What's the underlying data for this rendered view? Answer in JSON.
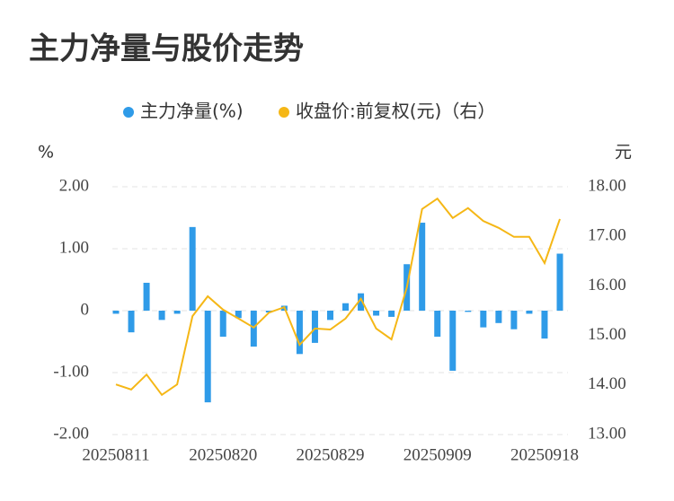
{
  "chart_data": {
    "type": "bar-line",
    "title": "主力净量与股价走势",
    "y_label": "%",
    "y2_label": "元",
    "categories": [
      "20250811",
      null,
      null,
      null,
      null,
      null,
      null,
      "20250820",
      null,
      null,
      null,
      null,
      null,
      null,
      "20250829",
      null,
      null,
      null,
      null,
      null,
      null,
      "20250909",
      null,
      null,
      null,
      null,
      null,
      null,
      "20250918",
      null
    ],
    "series": [
      {
        "name": "主力净量(%)",
        "type": "bar",
        "color": "#2f9be8",
        "values": [
          -0.05,
          -0.35,
          0.45,
          -0.15,
          -0.05,
          1.35,
          -1.48,
          -0.42,
          -0.12,
          -0.58,
          -0.03,
          0.08,
          -0.7,
          -0.52,
          -0.15,
          0.12,
          0.28,
          -0.08,
          -0.1,
          0.75,
          1.42,
          -0.42,
          -0.97,
          -0.02,
          -0.27,
          -0.2,
          -0.3,
          -0.05,
          -0.45,
          0.92
        ]
      },
      {
        "name": "收盘价:前复权(元)（右）",
        "type": "line",
        "axis": "y2",
        "color": "#f5b716",
        "values": [
          14.01,
          13.91,
          14.21,
          13.8,
          14.01,
          15.39,
          15.79,
          15.52,
          15.34,
          15.16,
          15.46,
          15.57,
          14.81,
          15.14,
          15.12,
          15.34,
          15.74,
          15.14,
          14.92,
          15.97,
          17.55,
          17.76,
          17.37,
          17.57,
          17.31,
          17.17,
          16.99,
          16.99,
          16.46,
          17.35
        ]
      }
    ],
    "ylim": [
      -2,
      2
    ],
    "yticks": [
      {
        "value": 2,
        "label": "2.00"
      },
      {
        "value": 1,
        "label": "1.00"
      },
      0,
      {
        "value": -1,
        "label": "-1.00"
      },
      {
        "value": -2,
        "label": "-2.00"
      }
    ],
    "y2lim": [
      13,
      18
    ],
    "y2ticks": [
      {
        "value": 18,
        "label": "18.00"
      },
      {
        "value": 17,
        "label": "17.00"
      },
      {
        "value": 16,
        "label": "16.00"
      },
      {
        "value": 15,
        "label": "15.00"
      },
      {
        "value": 14,
        "label": "14.00"
      },
      {
        "value": 13,
        "label": "13.00"
      }
    ],
    "grid": true
  }
}
